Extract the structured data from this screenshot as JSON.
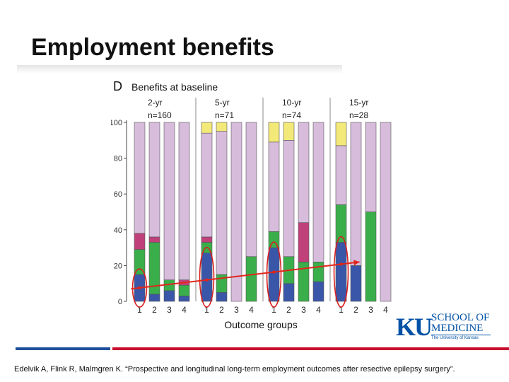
{
  "slide": {
    "title": "Employment benefits",
    "citation": "Edelvik A, Flink R, Malmgren K. “Prospective and longitudinal long-term employment outcomes after resective epilepsy surgery”."
  },
  "logo": {
    "mark": "KU",
    "line1": "SCHOOL OF",
    "line2": "MEDICINE",
    "tagline": "The University of Kansas"
  },
  "colors": {
    "accent_blue": "#1f4e9c",
    "accent_red": "#c8102e",
    "seg_blue": "#3a56a8",
    "seg_green": "#3aae4a",
    "seg_magenta": "#c0407a",
    "seg_lavender": "#d7bcdc",
    "seg_yellow": "#f3e979",
    "arrow": "#e0261b",
    "circle": "#d92020"
  },
  "chart_data": {
    "type": "stacked-bar",
    "panel_letter": "D",
    "title": "Benefits at baseline",
    "xlabel": "Outcome groups",
    "ylabel": "",
    "ylim": [
      0,
      100
    ],
    "y_ticks": [
      "0",
      "20",
      "40",
      "60",
      "80",
      "100"
    ],
    "series_names": [
      "blue",
      "green",
      "magenta",
      "lavender",
      "yellow"
    ],
    "categories": [
      "1",
      "2",
      "3",
      "4"
    ],
    "groups": [
      {
        "label": "2-yr",
        "n": "n=160",
        "bars": [
          [
            15,
            14,
            9,
            62,
            0
          ],
          [
            4,
            29,
            3,
            64,
            0
          ],
          [
            6,
            6,
            0,
            88,
            0
          ],
          [
            3,
            6,
            3,
            88,
            0
          ]
        ]
      },
      {
        "label": "5-yr",
        "n": "n=71",
        "bars": [
          [
            27,
            6,
            3,
            58,
            6
          ],
          [
            5,
            10,
            0,
            80,
            5
          ],
          [
            0,
            0,
            0,
            100,
            0
          ],
          [
            0,
            25,
            0,
            75,
            0
          ]
        ]
      },
      {
        "label": "10-yr",
        "n": "n=74",
        "bars": [
          [
            30,
            9,
            0,
            50,
            11
          ],
          [
            10,
            15,
            0,
            65,
            10
          ],
          [
            0,
            22,
            22,
            56,
            0
          ],
          [
            11,
            11,
            0,
            78,
            0
          ]
        ]
      },
      {
        "label": "15-yr",
        "n": "n=28",
        "bars": [
          [
            33,
            21,
            0,
            33,
            13
          ],
          [
            20,
            0,
            0,
            80,
            0
          ],
          [
            0,
            50,
            0,
            50,
            0
          ],
          [
            0,
            0,
            0,
            100,
            0
          ]
        ]
      }
    ],
    "highlight": {
      "circled_bars": "outcome group 1 of each follow-up",
      "trend_arrow": "rising from 2-yr to 15-yr group 1"
    }
  }
}
